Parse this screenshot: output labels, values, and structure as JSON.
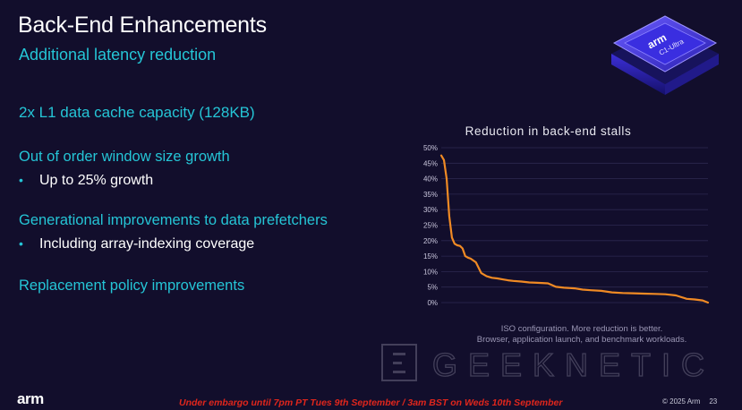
{
  "slide": {
    "title": "Back-End Enhancements",
    "subtitle": "Additional latency reduction",
    "points": [
      {
        "heading": "2x L1 data cache capacity (128KB)"
      },
      {
        "heading": "Out of order window size growth",
        "sub": "Up to 25% growth"
      },
      {
        "heading": "Generational improvements to data prefetchers",
        "sub": "Including array-indexing coverage"
      },
      {
        "heading": "Replacement policy improvements"
      }
    ],
    "chip_brand": "arm",
    "chip_model": "C1-Ultra",
    "caption_line1": "ISO configuration.  More reduction is better.",
    "caption_line2": "Browser, application launch, and benchmark workloads.",
    "watermark": "GEEKNETIC",
    "footer_logo": "arm",
    "embargo": "Under embargo until 7pm PT Tues 9th September / 3am BST on Weds 10th September",
    "copyright": "© 2025 Arm",
    "page_number": "23"
  },
  "chart_data": {
    "type": "line",
    "title": "Reduction in back-end stalls",
    "xlabel": "",
    "ylabel": "",
    "ylim": [
      0,
      50
    ],
    "yticks": [
      "50%",
      "45%",
      "40%",
      "35%",
      "30%",
      "25%",
      "20%",
      "15%",
      "10%",
      "5%",
      "0%"
    ],
    "grid": true,
    "color": "#f08a24",
    "series": [
      {
        "name": "Reduction",
        "x": [
          0,
          1,
          2,
          3,
          4,
          5,
          6,
          7,
          8,
          9,
          10,
          11,
          13,
          15,
          17,
          19,
          21,
          23,
          25,
          27,
          30,
          33,
          36,
          40,
          43,
          46,
          50,
          53,
          56,
          60,
          64,
          68,
          72,
          76,
          80,
          84,
          88,
          92,
          95,
          98,
          100
        ],
        "values": [
          47.5,
          46,
          40,
          28,
          21,
          19,
          18.5,
          18.3,
          17.5,
          15,
          14.5,
          14.2,
          13,
          9.5,
          8.5,
          8,
          7.8,
          7.5,
          7.2,
          7,
          6.8,
          6.5,
          6.4,
          6.2,
          5.1,
          4.8,
          4.6,
          4.2,
          4,
          3.8,
          3.3,
          3.1,
          3,
          2.9,
          2.8,
          2.7,
          2.3,
          1.2,
          1,
          0.7,
          0
        ]
      }
    ]
  }
}
